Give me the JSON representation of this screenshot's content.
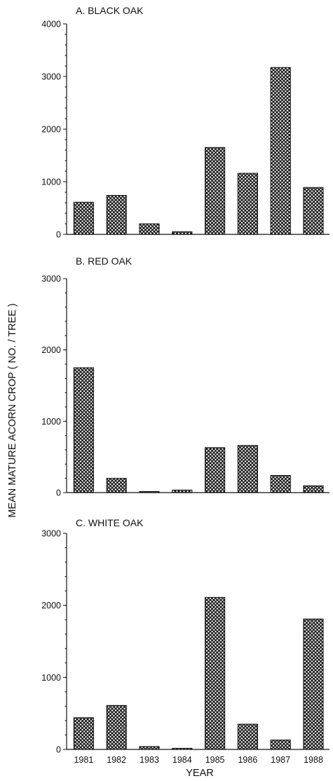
{
  "ylabel": "MEAN MATURE ACORN CROP ( NO. / TREE )",
  "xlabel": "YEAR",
  "colors": {
    "bar_fill": "#2b2b2b",
    "bar_stroke": "#111111",
    "background": "#ffffff"
  },
  "chart_data": [
    {
      "type": "bar",
      "title": "A.  BLACK OAK",
      "categories": [
        "1981",
        "1982",
        "1983",
        "1984",
        "1985",
        "1986",
        "1987",
        "1988"
      ],
      "values": [
        610,
        740,
        200,
        50,
        1650,
        1160,
        3170,
        890
      ],
      "ylim": [
        0,
        4000
      ],
      "yticks": [
        0,
        1000,
        2000,
        3000,
        4000
      ]
    },
    {
      "type": "bar",
      "title": "B.  RED OAK",
      "categories": [
        "1981",
        "1982",
        "1983",
        "1984",
        "1985",
        "1986",
        "1987",
        "1988"
      ],
      "values": [
        1750,
        200,
        10,
        35,
        630,
        660,
        240,
        95
      ],
      "ylim": [
        0,
        3000
      ],
      "yticks": [
        0,
        1000,
        2000,
        3000
      ]
    },
    {
      "type": "bar",
      "title": "C.  WHITE OAK",
      "categories": [
        "1981",
        "1982",
        "1983",
        "1984",
        "1985",
        "1986",
        "1987",
        "1988"
      ],
      "values": [
        440,
        610,
        40,
        15,
        2110,
        350,
        130,
        1810
      ],
      "ylim": [
        0,
        3000
      ],
      "yticks": [
        0,
        1000,
        2000,
        3000
      ]
    }
  ]
}
